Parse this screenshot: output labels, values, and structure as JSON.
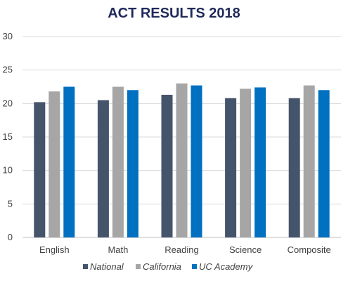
{
  "chart_data": {
    "type": "bar",
    "title": "ACT RESULTS 2018",
    "xlabel": "",
    "ylabel": "",
    "ylim": [
      0,
      30
    ],
    "yticks": [
      0,
      5,
      10,
      15,
      20,
      25,
      30
    ],
    "grid": true,
    "legend_position": "bottom",
    "categories": [
      "English",
      "Math",
      "Reading",
      "Science",
      "Composite"
    ],
    "series": [
      {
        "name": "National",
        "color": "#44546a",
        "values": [
          20.2,
          20.5,
          21.3,
          20.8,
          20.8
        ]
      },
      {
        "name": "California",
        "color": "#a6a6a6",
        "values": [
          21.8,
          22.5,
          23.0,
          22.2,
          22.7
        ]
      },
      {
        "name": "UC Academy",
        "color": "#0070c0",
        "values": [
          22.5,
          22.0,
          22.7,
          22.4,
          22.0
        ]
      }
    ]
  }
}
